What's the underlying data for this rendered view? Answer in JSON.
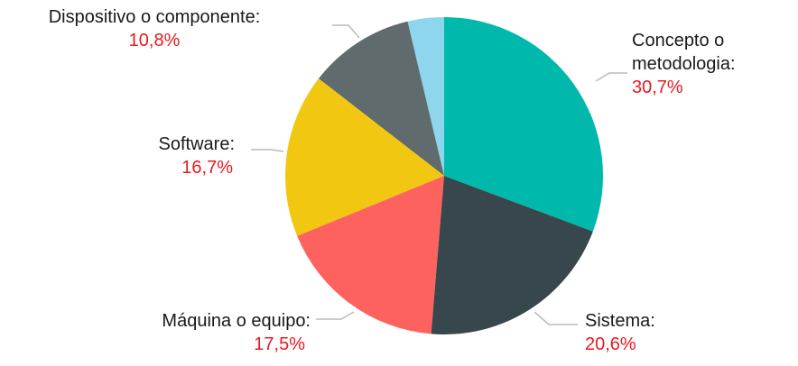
{
  "chart_data": {
    "type": "pie",
    "categories": [
      "Concepto o metodologia:",
      "Sistema:",
      "Máquina o equipo:",
      "Software:",
      "Dispositivo o componente:",
      null
    ],
    "values": [
      30.7,
      20.6,
      17.5,
      16.7,
      10.8,
      3.7
    ],
    "value_labels": [
      "30,7%",
      "20,6%",
      "17,5%",
      "16,7%",
      "10,8%",
      null
    ],
    "colors": [
      "#00b8ac",
      "#37474b",
      "#fe625e",
      "#f1c711",
      "#5f6b6c",
      "#8ed5ee"
    ]
  }
}
